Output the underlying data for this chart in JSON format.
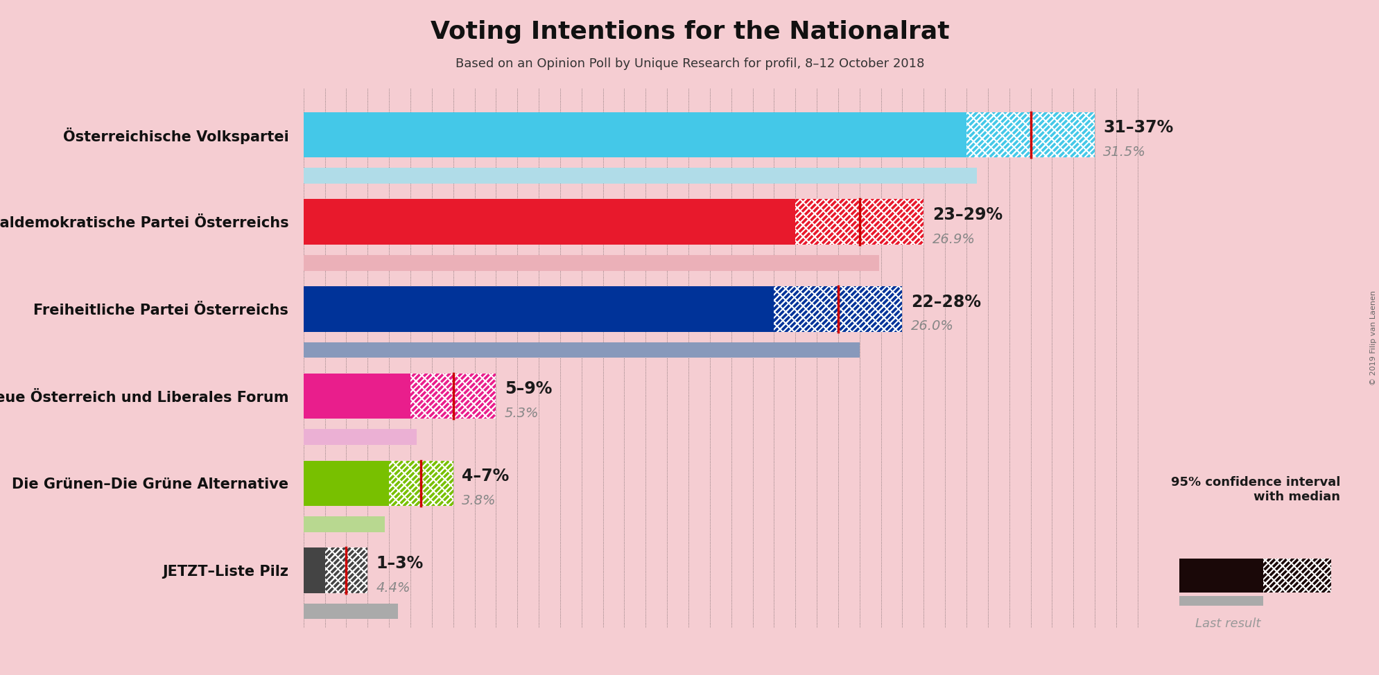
{
  "title": "Voting Intentions for the Nationalrat",
  "subtitle": "Based on an Opinion Poll by Unique Research for profil, 8–12 October 2018",
  "background_color": "#f5cdd2",
  "parties": [
    {
      "name": "Österreichische Volkspartei",
      "ci_low": 31,
      "ci_high": 37,
      "median": 34,
      "last_result": 31.5,
      "color": "#44c8e8",
      "last_color": "#b0dce8",
      "label": "31–37%",
      "median_label": "31.5%"
    },
    {
      "name": "Sozialdemokratische Partei Österreichs",
      "ci_low": 23,
      "ci_high": 29,
      "median": 26,
      "last_result": 26.9,
      "color": "#e8192c",
      "last_color": "#ebb0b8",
      "label": "23–29%",
      "median_label": "26.9%"
    },
    {
      "name": "Freiheitliche Partei Österreichs",
      "ci_low": 22,
      "ci_high": 28,
      "median": 25,
      "last_result": 26.0,
      "color": "#003399",
      "last_color": "#8899bb",
      "label": "22–28%",
      "median_label": "26.0%"
    },
    {
      "name": "NEOS–Das Neue Österreich und Liberales Forum",
      "ci_low": 5,
      "ci_high": 9,
      "median": 7,
      "last_result": 5.3,
      "color": "#e91e8c",
      "last_color": "#ebb0d4",
      "label": "5–9%",
      "median_label": "5.3%"
    },
    {
      "name": "Die Grünen–Die Grüne Alternative",
      "ci_low": 4,
      "ci_high": 7,
      "median": 5.5,
      "last_result": 3.8,
      "color": "#78c000",
      "last_color": "#b8d890",
      "label": "4–7%",
      "median_label": "3.8%"
    },
    {
      "name": "JETZT–Liste Pilz",
      "ci_low": 1,
      "ci_high": 3,
      "median": 2,
      "last_result": 4.4,
      "color": "#444444",
      "last_color": "#aaaaaa",
      "label": "1–3%",
      "median_label": "4.4%"
    }
  ],
  "xlim": [
    0,
    40
  ],
  "copyright": "© 2019 Filip van Laenen"
}
